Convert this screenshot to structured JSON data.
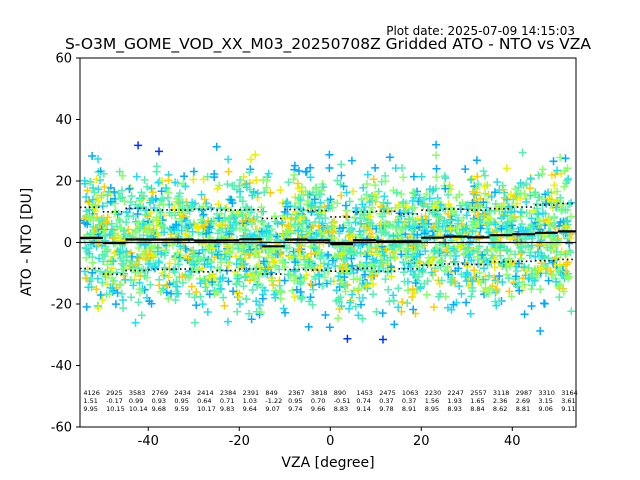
{
  "plot_date_label": "Plot date: 2025-07-09 14:15:03",
  "chart_data": {
    "type": "scatter",
    "title": "S-O3M_GOME_VOD_XX_M03_20250708Z Gridded ATO - NTO vs VZA",
    "xlabel": "VZA [degree]",
    "ylabel": "ATO - NTO [DU]",
    "xlim": [
      -55,
      54
    ],
    "ylim": [
      -60,
      60
    ],
    "xticks": [
      -40,
      -20,
      0,
      20,
      40
    ],
    "yticks": [
      -60,
      -40,
      -20,
      0,
      20,
      40,
      60
    ],
    "grid": false,
    "marker": "+",
    "colors": {
      "blue": "#0033ff",
      "deepskyblue": "#00aaff",
      "cyan": "#22ddee",
      "aquamarine": "#55f0b0",
      "lightgreen": "#88ff66",
      "yellow": "#eeee00",
      "gold": "#ffcc00",
      "line": "#000000"
    },
    "reference_line_y": 0,
    "bin_stats": {
      "x": [
        -52.5,
        -47.5,
        -42.5,
        -37.5,
        -32.5,
        -27.5,
        -22.5,
        -17.5,
        -12.5,
        -7.5,
        -2.5,
        2.5,
        7.5,
        12.5,
        17.5,
        22.5,
        27.5,
        32.5,
        37.5,
        42.5,
        47.5,
        52.5
      ],
      "count": [
        "4126",
        "2925",
        "3583",
        "2769",
        "2434",
        "2414",
        "2384",
        "2391",
        "849",
        "2367",
        "3818",
        "890",
        "1453",
        "2475",
        "1063",
        "2230",
        "2247",
        "2557",
        "3118",
        "2987",
        "3310",
        "3164"
      ],
      "mean": [
        1.51,
        -0.17,
        0.99,
        0.93,
        0.95,
        0.64,
        0.71,
        1.03,
        -1.22,
        0.95,
        0.7,
        -0.51,
        0.74,
        0.37,
        0.37,
        1.56,
        1.93,
        1.65,
        2.36,
        2.69,
        3.15,
        3.61
      ],
      "std": [
        9.95,
        10.15,
        10.14,
        9.68,
        9.59,
        10.17,
        9.83,
        9.64,
        9.07,
        9.74,
        9.66,
        8.83,
        9.14,
        9.78,
        8.91,
        8.95,
        8.93,
        8.84,
        8.62,
        8.81,
        9.06,
        9.11
      ]
    }
  }
}
